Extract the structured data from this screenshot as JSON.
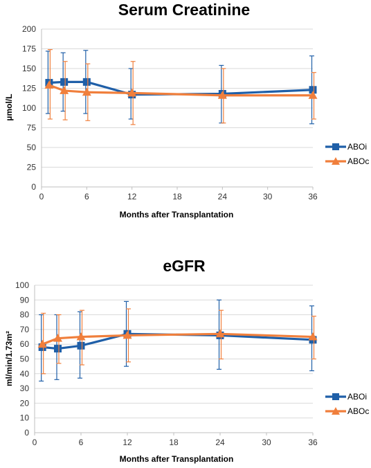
{
  "chart_data": [
    {
      "type": "line",
      "title": "Serum Creatinine",
      "xlabel": "Months after Transplantation",
      "ylabel": "µmol/L",
      "xlim": [
        0,
        36
      ],
      "ylim": [
        0,
        200
      ],
      "xticks": [
        0,
        6,
        12,
        18,
        24,
        30,
        36
      ],
      "yticks": [
        0,
        25,
        50,
        75,
        100,
        125,
        150,
        175,
        200
      ],
      "grid": true,
      "legend_position": "right",
      "series": [
        {
          "name": "ABOi",
          "color": "#1f5fa8",
          "marker": "square",
          "x": [
            1,
            3,
            6,
            12,
            24,
            36
          ],
          "y": [
            132,
            133,
            133,
            117,
            118,
            123
          ],
          "err_low": [
            93,
            96,
            93,
            86,
            81,
            80
          ],
          "err_high": [
            172,
            170,
            173,
            150,
            154,
            166
          ]
        },
        {
          "name": "ABOc",
          "color": "#f07f3c",
          "marker": "triangle",
          "x": [
            1,
            3,
            6,
            12,
            24,
            36
          ],
          "y": [
            129,
            122,
            120,
            119,
            116,
            116
          ],
          "err_low": [
            86,
            85,
            84,
            79,
            81,
            86
          ],
          "err_high": [
            174,
            159,
            156,
            159,
            150,
            145
          ]
        }
      ]
    },
    {
      "type": "line",
      "title": "eGFR",
      "xlabel": "Months after Transplantation",
      "ylabel": "ml/min/1.73m²",
      "xlim": [
        0,
        36
      ],
      "ylim": [
        0,
        100
      ],
      "xticks": [
        0,
        6,
        12,
        18,
        24,
        30,
        36
      ],
      "yticks": [
        0,
        10,
        20,
        30,
        40,
        50,
        60,
        70,
        80,
        90,
        100
      ],
      "grid": true,
      "legend_position": "right",
      "series": [
        {
          "name": "ABOi",
          "color": "#1f5fa8",
          "marker": "square",
          "x": [
            1,
            3,
            6,
            12,
            24,
            36
          ],
          "y": [
            58,
            57,
            59,
            67,
            66,
            63
          ],
          "err_low": [
            35,
            36,
            37,
            45,
            43,
            42
          ],
          "err_high": [
            80,
            80,
            82,
            89,
            90,
            86
          ]
        },
        {
          "name": "ABOc",
          "color": "#f07f3c",
          "marker": "triangle",
          "x": [
            1,
            3,
            6,
            12,
            24,
            36
          ],
          "y": [
            60,
            64,
            65,
            66,
            67,
            65
          ],
          "err_low": [
            40,
            47,
            46,
            48,
            50,
            50
          ],
          "err_high": [
            81,
            80,
            83,
            84,
            83,
            79
          ]
        }
      ]
    }
  ]
}
